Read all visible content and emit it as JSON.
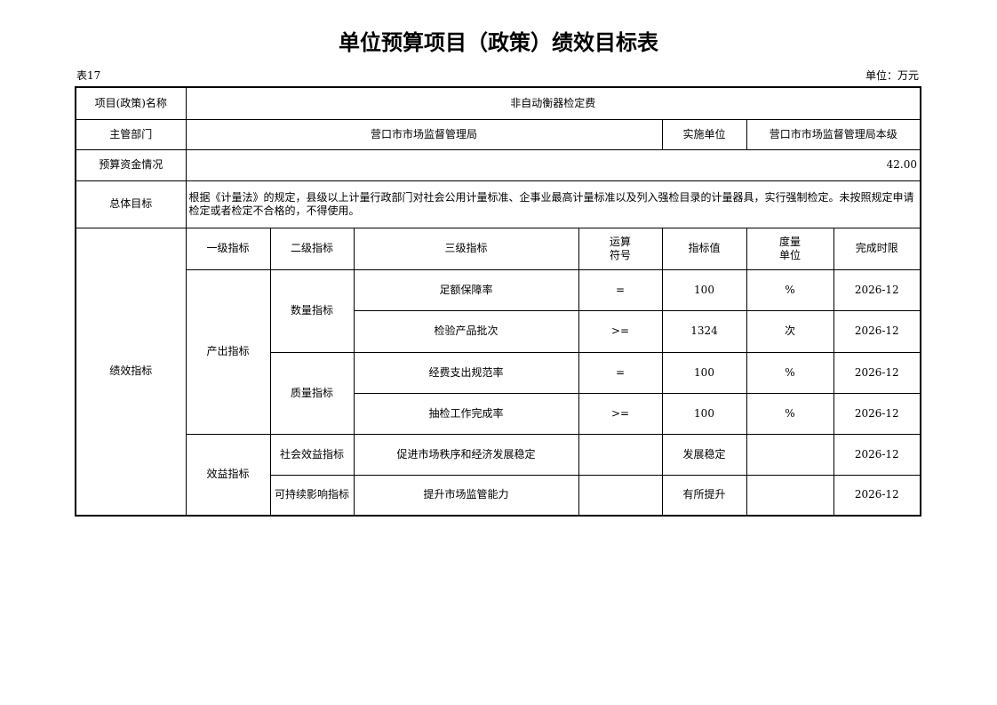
{
  "title": "单位预算项目（政策）绩效目标表",
  "table_no": "表17",
  "unit": "单位：万元",
  "project_label": "项目(政策)名称",
  "project_name": "非自动衡器检定费",
  "dept_label": "主管部门",
  "dept": "营口市市场监督管理局",
  "impl_label": "实施单位",
  "impl": "营口市市场监督管理局本级",
  "budget_label": "预算资金情况",
  "budget": "42.00",
  "goal_label": "总体目标",
  "goal": "根据《计量法》的规定，县级以上计量行政部门对社会公用计量标准、企事业最高计量标准以及列入强检目录的计量器具，实行强制检定。未按照规定申请检定或者检定不合格的，不得使用。",
  "perf_label": "绩效指标",
  "headers": [
    "一级指标",
    "二级指标",
    "三级指标",
    "运算符号",
    "指标值",
    "度量单位",
    "完成时限"
  ],
  "level1": [
    "产出指标",
    "效益指标"
  ],
  "level2": [
    "数量指标",
    "质量指标",
    "社会效益指标",
    "可持续影响指标"
  ],
  "rows": [
    {
      "name": "足额保障率",
      "op": "=",
      "value": "100",
      "unit": "%",
      "deadline": "2026-12"
    },
    {
      "name": "检验产品批次",
      "op": ">=",
      "value": "1324",
      "unit": "次",
      "deadline": "2026-12"
    },
    {
      "name": "经费支出规范率",
      "op": "=",
      "value": "100",
      "unit": "%",
      "deadline": "2026-12"
    },
    {
      "name": "抽检工作完成率",
      "op": ">=",
      "value": "100",
      "unit": "%",
      "deadline": "2026-12"
    },
    {
      "name": "促进市场秩序和经济发展稳定",
      "op": "",
      "value": "发展稳定",
      "unit": "",
      "deadline": "2026-12"
    },
    {
      "name": "提升市场监管能力",
      "op": "",
      "value": "有所提升",
      "unit": "",
      "deadline": "2026-12"
    }
  ]
}
